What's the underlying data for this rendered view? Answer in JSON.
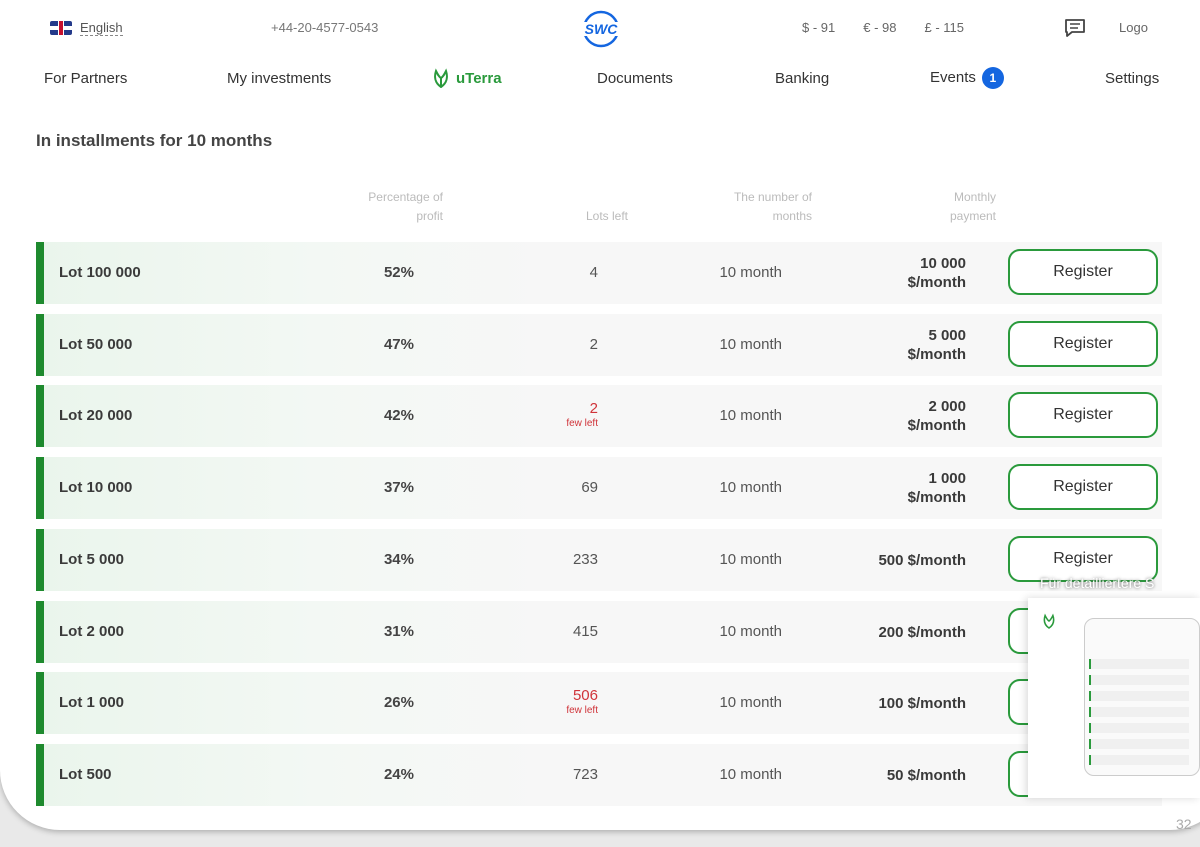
{
  "topbar": {
    "language": "English",
    "phone": "+44-20-4577-0543",
    "logo_text": "SWC",
    "currencies": [
      "$ - 91",
      "€ - 98",
      "£ - 115"
    ],
    "logout": "Logo"
  },
  "nav": {
    "items": [
      "For Partners",
      "My investments",
      "uTerra",
      "Documents",
      "Banking",
      "Events",
      "Settings"
    ],
    "events_badge": "1"
  },
  "section_title": "In installments for 10 months",
  "table": {
    "headers": {
      "profit": [
        "Percentage of",
        "profit"
      ],
      "lots_left": "Lots left",
      "months": [
        "The number of",
        "months"
      ],
      "payment": [
        "Monthly",
        "payment"
      ]
    },
    "register_label": "Register",
    "few_left_label": "few left",
    "rows": [
      {
        "name": "Lot 100 000",
        "profit": "52%",
        "lots": "4",
        "low": false,
        "months": "10 month",
        "payment": [
          "10 000",
          "$/month"
        ]
      },
      {
        "name": "Lot 50 000",
        "profit": "47%",
        "lots": "2",
        "low": false,
        "months": "10 month",
        "payment": [
          "5 000",
          "$/month"
        ]
      },
      {
        "name": "Lot 20 000",
        "profit": "42%",
        "lots": "2",
        "low": true,
        "months": "10 month",
        "payment": [
          "2 000",
          "$/month"
        ]
      },
      {
        "name": "Lot 10 000",
        "profit": "37%",
        "lots": "69",
        "low": false,
        "months": "10 month",
        "payment": [
          "1 000",
          "$/month"
        ]
      },
      {
        "name": "Lot 5 000",
        "profit": "34%",
        "lots": "233",
        "low": false,
        "months": "10 month",
        "payment": [
          "500 $/month"
        ]
      },
      {
        "name": "Lot 2 000",
        "profit": "31%",
        "lots": "415",
        "low": false,
        "months": "10 month",
        "payment": [
          "200 $/month"
        ]
      },
      {
        "name": "Lot 1 000",
        "profit": "26%",
        "lots": "506",
        "low": true,
        "months": "10 month",
        "payment": [
          "100 $/month"
        ]
      },
      {
        "name": "Lot 500",
        "profit": "24%",
        "lots": "723",
        "low": false,
        "months": "10 month",
        "payment": [
          "50 $/month"
        ]
      }
    ]
  },
  "overlay": {
    "caption": "Für detailliertere S",
    "timer": "32"
  },
  "icons": {
    "language": "uk-flag-icon",
    "chat": "chat-icon",
    "uterra": "uterra-leaf-icon"
  },
  "colors": {
    "accent": "#2a9a3c",
    "badge": "#1466e0",
    "warning": "#d0343a"
  }
}
